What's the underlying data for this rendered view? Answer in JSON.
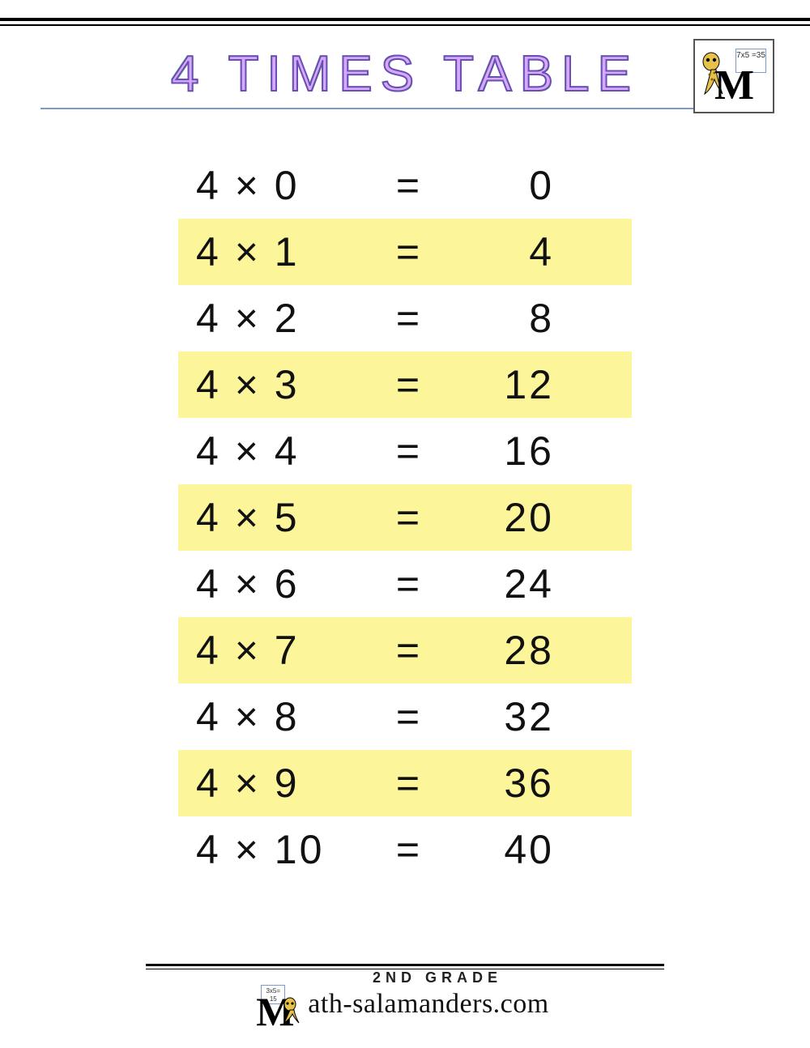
{
  "title": "4 TIMES TABLE",
  "title_color_fill": "#d6a8ff",
  "title_color_stroke": "#6a4fb3",
  "title_rule_color": "#7a9bd1",
  "highlight_color": "#fdf59a",
  "text_color": "#111111",
  "multiplicand": 4,
  "logo": {
    "board_text": "7x5\n=35",
    "letter": "M"
  },
  "rows": [
    {
      "expr": "4 × 0",
      "eq": "=",
      "result": "0",
      "highlight": false
    },
    {
      "expr": "4 × 1",
      "eq": "=",
      "result": "4",
      "highlight": true
    },
    {
      "expr": "4 × 2",
      "eq": "=",
      "result": "8",
      "highlight": false
    },
    {
      "expr": "4 × 3",
      "eq": "=",
      "result": "12",
      "highlight": true
    },
    {
      "expr": "4 × 4",
      "eq": "=",
      "result": "16",
      "highlight": false
    },
    {
      "expr": "4 × 5",
      "eq": "=",
      "result": "20",
      "highlight": true
    },
    {
      "expr": "4 × 6",
      "eq": "=",
      "result": "24",
      "highlight": false
    },
    {
      "expr": "4 × 7",
      "eq": "=",
      "result": "28",
      "highlight": true
    },
    {
      "expr": "4 × 8",
      "eq": "=",
      "result": "32",
      "highlight": false
    },
    {
      "expr": "4 × 9",
      "eq": "=",
      "result": "36",
      "highlight": true
    },
    {
      "expr": "4 × 10",
      "eq": "=",
      "result": "40",
      "highlight": false
    }
  ],
  "footer": {
    "grade": "2ND GRADE",
    "site_prefix_letter": "M",
    "site_rest": "ath-salamanders.com",
    "board_text": "3x5=\n15"
  }
}
